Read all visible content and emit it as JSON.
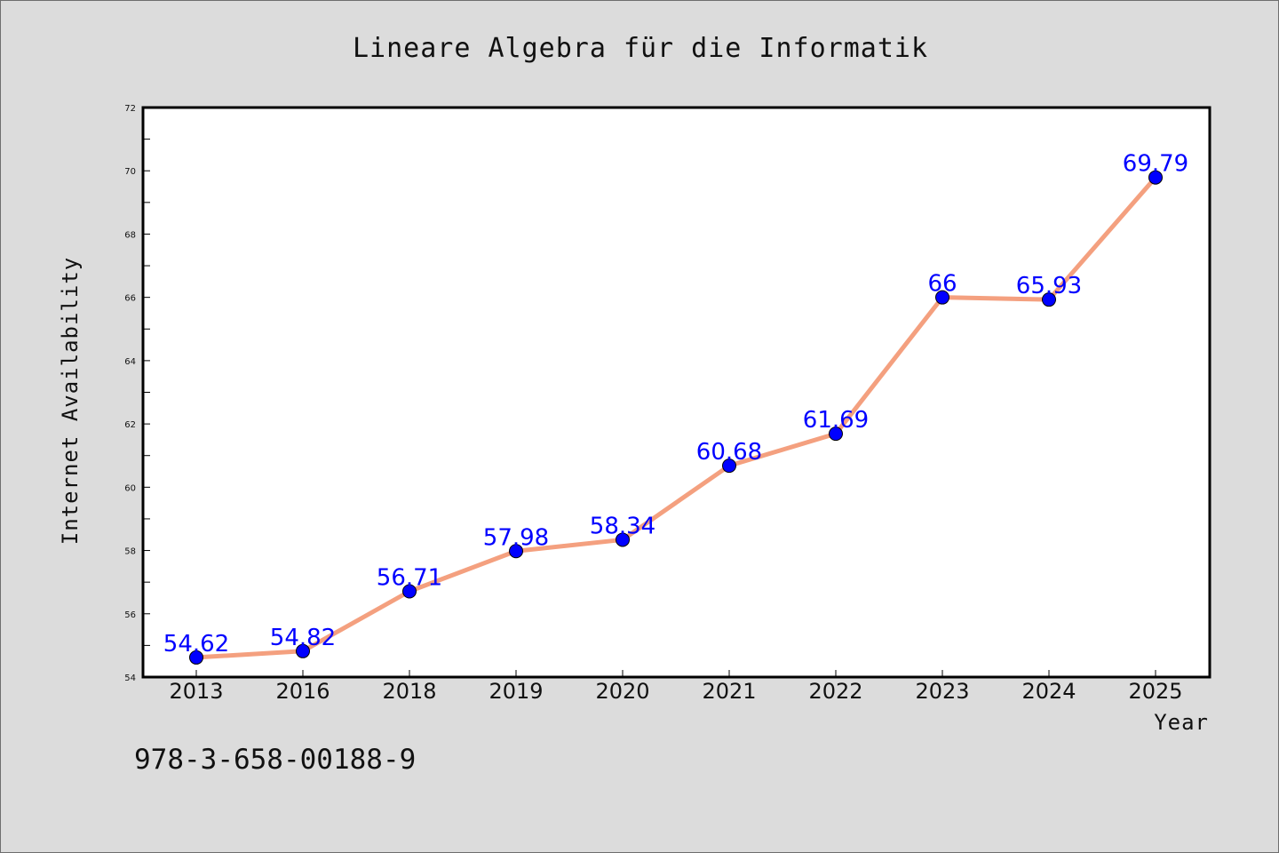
{
  "chart_data": {
    "type": "line",
    "title": "Lineare Algebra für die Informatik",
    "xlabel": "Year",
    "ylabel": "Internet Availability",
    "categories": [
      "2013",
      "2016",
      "2018",
      "2019",
      "2020",
      "2021",
      "2022",
      "2023",
      "2024",
      "2025"
    ],
    "series": [
      {
        "values": [
          54.62,
          54.82,
          56.71,
          57.98,
          58.34,
          60.68,
          61.69,
          66,
          65.93,
          69.79
        ],
        "labels": [
          "54.62",
          "54.82",
          "56.71",
          "57.98",
          "58.34",
          "60.68",
          "61.69",
          "66",
          "65.93",
          "69.79"
        ],
        "line_color": "#f4a07f",
        "marker_color": "#0000ff",
        "label_color": "#0000ff"
      }
    ],
    "ylim": [
      54,
      72
    ],
    "yticks": [
      54,
      56,
      58,
      60,
      62,
      64,
      66,
      68,
      70,
      72
    ],
    "grid": false,
    "legend": "none"
  },
  "footnote": "978-3-658-00188-9"
}
